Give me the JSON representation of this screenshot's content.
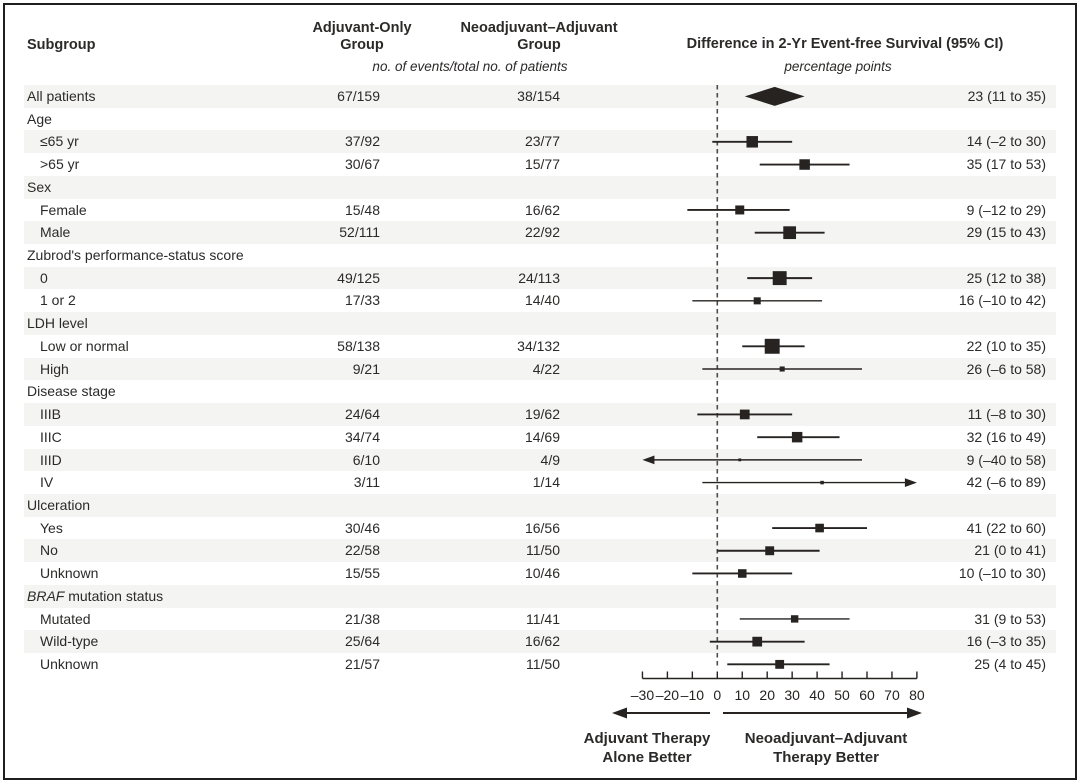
{
  "figure": {
    "columns": {
      "subgroup": "Subgroup",
      "adjuvant_line1": "Adjuvant-Only",
      "adjuvant_line2": "Group",
      "neoadjuvant_line1": "Neoadjuvant–Adjuvant",
      "neoadjuvant_line2": "Group",
      "events_note": "no. of events/total no. of patients",
      "difference_title": "Difference in 2-Yr Event-free Survival (95% CI)",
      "difference_units": "percentage points"
    },
    "footer": {
      "left_label_line1": "Adjuvant Therapy",
      "left_label_line2": "Alone Better",
      "right_label_line1": "Neoadjuvant–Adjuvant",
      "right_label_line2": "Therapy Better"
    },
    "colors": {
      "band": "#f4f4f2",
      "ink": "#262321",
      "dashed_line": "#4d4d4d"
    }
  },
  "chart_data": {
    "type": "forest",
    "title": "Difference in 2-Yr Event-free Survival (95% CI)",
    "units": "percentage points",
    "axis": {
      "min": -30,
      "max": 80,
      "step": 10,
      "tick_labels": [
        "–30",
        "–20",
        "–10",
        "0",
        "10",
        "20",
        "30",
        "40",
        "50",
        "60",
        "70",
        "80"
      ],
      "zero_reference_line": 0
    },
    "rows": [
      {
        "type": "data",
        "label": "All patients",
        "indent": false,
        "adjuvant": "67/159",
        "neoadjuvant": "38/154",
        "estimate": 23,
        "ci_low": 11,
        "ci_high": 35,
        "ci_text": "23 (11 to 35)",
        "marker": "diamond"
      },
      {
        "type": "group",
        "label": "Age"
      },
      {
        "type": "data",
        "label": "≤65 yr",
        "indent": true,
        "adjuvant": "37/92",
        "neoadjuvant": "23/77",
        "estimate": 14,
        "ci_low": -2,
        "ci_high": 30,
        "ci_text": "14 (–2 to 30)",
        "marker": "square"
      },
      {
        "type": "data",
        "label": ">65 yr",
        "indent": true,
        "adjuvant": "30/67",
        "neoadjuvant": "15/77",
        "estimate": 35,
        "ci_low": 17,
        "ci_high": 53,
        "ci_text": "35 (17 to 53)",
        "marker": "square"
      },
      {
        "type": "group",
        "label": "Sex"
      },
      {
        "type": "data",
        "label": "Female",
        "indent": true,
        "adjuvant": "15/48",
        "neoadjuvant": "16/62",
        "estimate": 9,
        "ci_low": -12,
        "ci_high": 29,
        "ci_text": "9 (–12 to 29)",
        "marker": "square"
      },
      {
        "type": "data",
        "label": "Male",
        "indent": true,
        "adjuvant": "52/111",
        "neoadjuvant": "22/92",
        "estimate": 29,
        "ci_low": 15,
        "ci_high": 43,
        "ci_text": "29 (15 to 43)",
        "marker": "square"
      },
      {
        "type": "group",
        "label": "Zubrod's performance-status score"
      },
      {
        "type": "data",
        "label": "0",
        "indent": true,
        "adjuvant": "49/125",
        "neoadjuvant": "24/113",
        "estimate": 25,
        "ci_low": 12,
        "ci_high": 38,
        "ci_text": "25 (12 to 38)",
        "marker": "square"
      },
      {
        "type": "data",
        "label": "1 or 2",
        "indent": true,
        "adjuvant": "17/33",
        "neoadjuvant": "14/40",
        "estimate": 16,
        "ci_low": -10,
        "ci_high": 42,
        "ci_text": "16 (–10 to 42)",
        "marker": "square"
      },
      {
        "type": "group",
        "label": "LDH level"
      },
      {
        "type": "data",
        "label": "Low or normal",
        "indent": true,
        "adjuvant": "58/138",
        "neoadjuvant": "34/132",
        "estimate": 22,
        "ci_low": 10,
        "ci_high": 35,
        "ci_text": "22 (10 to 35)",
        "marker": "square"
      },
      {
        "type": "data",
        "label": "High",
        "indent": true,
        "adjuvant": "9/21",
        "neoadjuvant": "4/22",
        "estimate": 26,
        "ci_low": -6,
        "ci_high": 58,
        "ci_text": "26 (–6 to 58)",
        "marker": "square"
      },
      {
        "type": "group",
        "label": "Disease stage"
      },
      {
        "type": "data",
        "label": "IIIB",
        "indent": true,
        "adjuvant": "24/64",
        "neoadjuvant": "19/62",
        "estimate": 11,
        "ci_low": -8,
        "ci_high": 30,
        "ci_text": "11 (–8 to 30)",
        "marker": "square"
      },
      {
        "type": "data",
        "label": "IIIC",
        "indent": true,
        "adjuvant": "34/74",
        "neoadjuvant": "14/69",
        "estimate": 32,
        "ci_low": 16,
        "ci_high": 49,
        "ci_text": "32 (16 to 49)",
        "marker": "square"
      },
      {
        "type": "data",
        "label": "IIID",
        "indent": true,
        "adjuvant": "6/10",
        "neoadjuvant": "4/9",
        "estimate": 9,
        "ci_low": -40,
        "ci_high": 58,
        "ci_text": "9 (–40 to 58)",
        "marker": "square"
      },
      {
        "type": "data",
        "label": "IV",
        "indent": true,
        "adjuvant": "3/11",
        "neoadjuvant": "1/14",
        "estimate": 42,
        "ci_low": -6,
        "ci_high": 89,
        "ci_text": "42 (–6 to 89)",
        "marker": "square"
      },
      {
        "type": "group",
        "label": "Ulceration"
      },
      {
        "type": "data",
        "label": "Yes",
        "indent": true,
        "adjuvant": "30/46",
        "neoadjuvant": "16/56",
        "estimate": 41,
        "ci_low": 22,
        "ci_high": 60,
        "ci_text": "41 (22 to 60)",
        "marker": "square"
      },
      {
        "type": "data",
        "label": "No",
        "indent": true,
        "adjuvant": "22/58",
        "neoadjuvant": "11/50",
        "estimate": 21,
        "ci_low": 0,
        "ci_high": 41,
        "ci_text": "21 (0 to 41)",
        "marker": "square"
      },
      {
        "type": "data",
        "label": "Unknown",
        "indent": true,
        "adjuvant": "15/55",
        "neoadjuvant": "10/46",
        "estimate": 10,
        "ci_low": -10,
        "ci_high": 30,
        "ci_text": "10 (–10 to 30)",
        "marker": "square"
      },
      {
        "type": "group",
        "label": "BRAF mutation status",
        "italic_prefix": "BRAF"
      },
      {
        "type": "data",
        "label": "Mutated",
        "indent": true,
        "adjuvant": "21/38",
        "neoadjuvant": "11/41",
        "estimate": 31,
        "ci_low": 9,
        "ci_high": 53,
        "ci_text": "31 (9 to 53)",
        "marker": "square"
      },
      {
        "type": "data",
        "label": "Wild-type",
        "indent": true,
        "adjuvant": "25/64",
        "neoadjuvant": "16/62",
        "estimate": 16,
        "ci_low": -3,
        "ci_high": 35,
        "ci_text": "16 (–3 to 35)",
        "marker": "square"
      },
      {
        "type": "data",
        "label": "Unknown",
        "indent": true,
        "adjuvant": "21/57",
        "neoadjuvant": "11/50",
        "estimate": 25,
        "ci_low": 4,
        "ci_high": 45,
        "ci_text": "25 (4 to 45)",
        "marker": "square"
      }
    ]
  }
}
